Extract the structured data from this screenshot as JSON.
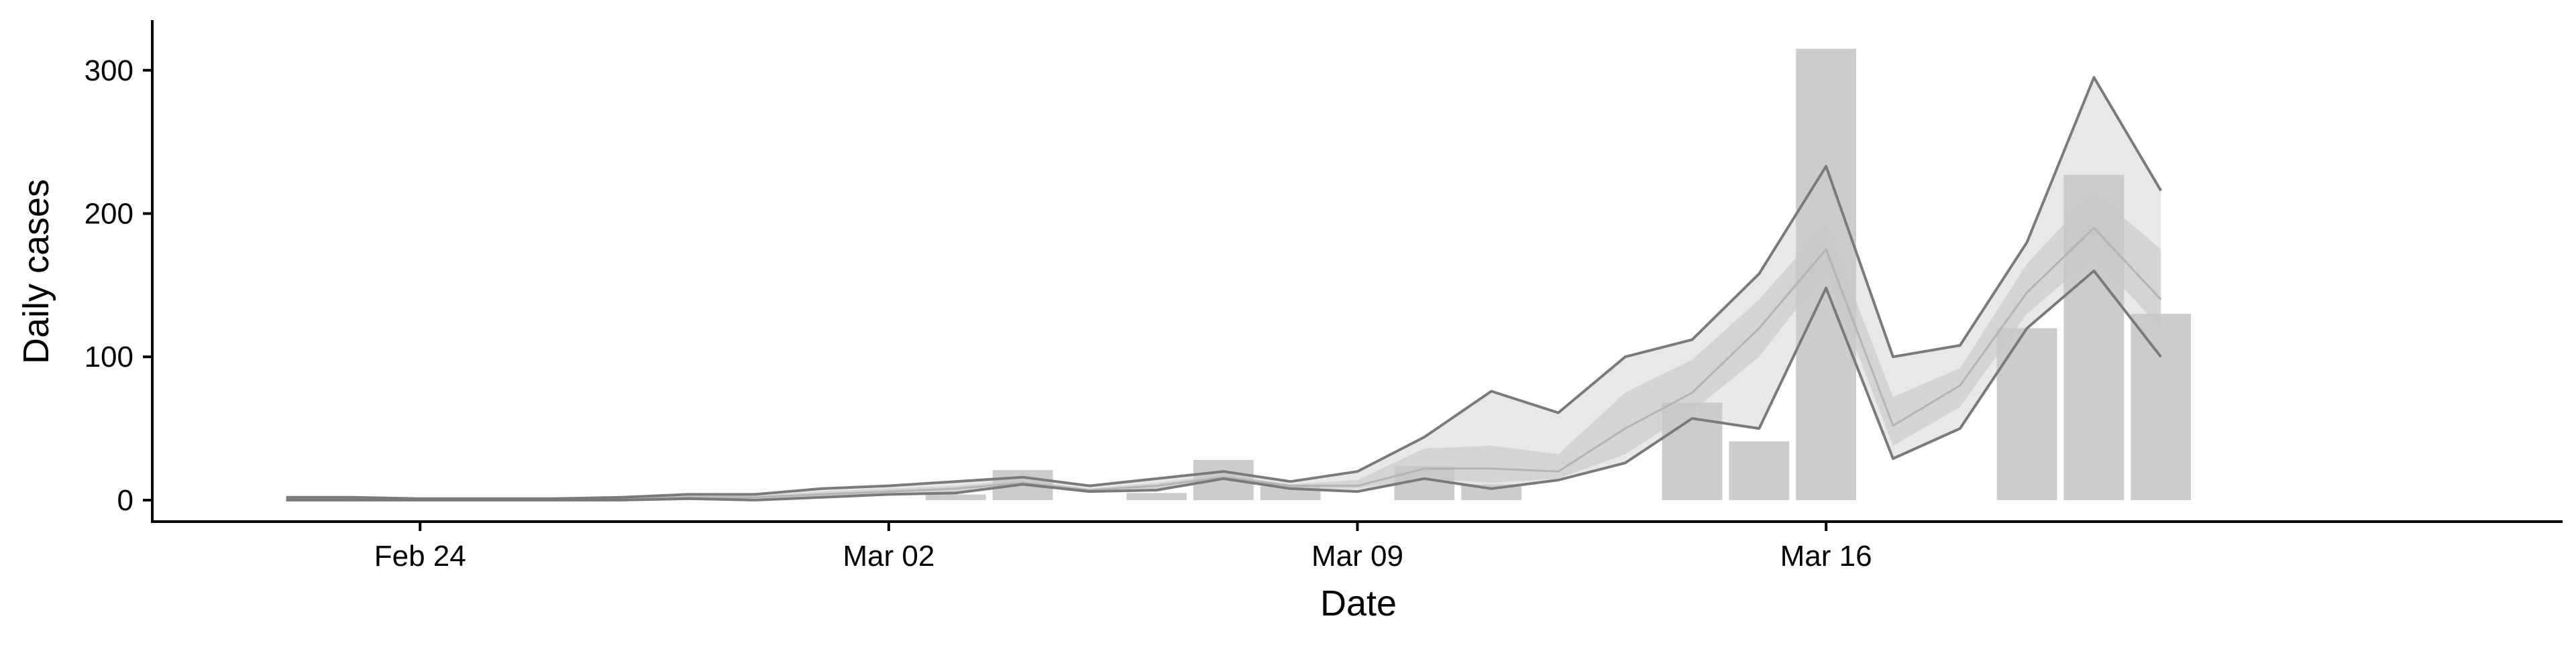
{
  "chart_data": {
    "type": "bar",
    "xlabel": "Date",
    "ylabel": "Daily cases",
    "x_tick_labels": [
      "Feb 24",
      "Mar 02",
      "Mar 09",
      "Mar 16"
    ],
    "y_ticks": [
      0,
      100,
      200,
      300
    ],
    "ylim": [
      -15,
      335
    ],
    "xlim": [
      "2020-02-20",
      "2020-03-27"
    ],
    "grid": false,
    "colors": {
      "bars": "#c8c8c8",
      "outer_band": "#e8e8e8",
      "inner_band": "#d4d4d4",
      "median_line": "#b4b4b4",
      "bound_lines": "#7a7a7a"
    },
    "bars": {
      "name": "",
      "dates": [
        "2020-03-03",
        "2020-03-04",
        "2020-03-06",
        "2020-03-07",
        "2020-03-08",
        "2020-03-10",
        "2020-03-11",
        "2020-03-14",
        "2020-03-15",
        "2020-03-16",
        "2020-03-19",
        "2020-03-20",
        "2020-03-21"
      ],
      "values": [
        4,
        21,
        5,
        28,
        10,
        24,
        11,
        68,
        41,
        315,
        120,
        227,
        130
      ]
    },
    "forecast": {
      "dates": [
        "2020-02-22",
        "2020-02-23",
        "2020-02-24",
        "2020-02-25",
        "2020-02-26",
        "2020-02-27",
        "2020-02-28",
        "2020-02-29",
        "2020-03-01",
        "2020-03-02",
        "2020-03-03",
        "2020-03-04",
        "2020-03-05",
        "2020-03-06",
        "2020-03-07",
        "2020-03-08",
        "2020-03-09",
        "2020-03-10",
        "2020-03-11",
        "2020-03-12",
        "2020-03-13",
        "2020-03-14",
        "2020-03-15",
        "2020-03-16",
        "2020-03-17",
        "2020-03-18",
        "2020-03-19",
        "2020-03-20",
        "2020-03-21"
      ],
      "upper": [
        2,
        2,
        1,
        1,
        1,
        2,
        4,
        4,
        8,
        10,
        13,
        16,
        10,
        15,
        20,
        13,
        20,
        44,
        76,
        61,
        100,
        112,
        158,
        233,
        100,
        108,
        180,
        295,
        216
      ],
      "upper_inner": [
        1,
        1,
        1,
        1,
        1,
        1,
        3,
        3,
        6,
        8,
        10,
        14,
        8,
        12,
        18,
        11,
        14,
        36,
        38,
        32,
        75,
        98,
        140,
        193,
        72,
        92,
        165,
        215,
        175
      ],
      "median": [
        1,
        1,
        1,
        1,
        1,
        1,
        2,
        2,
        4,
        6,
        8,
        12,
        7,
        10,
        16,
        10,
        10,
        22,
        22,
        20,
        50,
        75,
        120,
        175,
        52,
        80,
        145,
        190,
        140
      ],
      "lower_inner": [
        0,
        0,
        0,
        0,
        0,
        0,
        1,
        1,
        2,
        4,
        6,
        10,
        6,
        8,
        14,
        8,
        8,
        15,
        12,
        15,
        32,
        62,
        100,
        160,
        38,
        65,
        130,
        170,
        120
      ],
      "lower": [
        0,
        0,
        0,
        0,
        0,
        0,
        1,
        0,
        2,
        4,
        5,
        11,
        6,
        7,
        15,
        8,
        6,
        15,
        8,
        14,
        26,
        57,
        50,
        148,
        29,
        50,
        120,
        160,
        100
      ]
    }
  }
}
